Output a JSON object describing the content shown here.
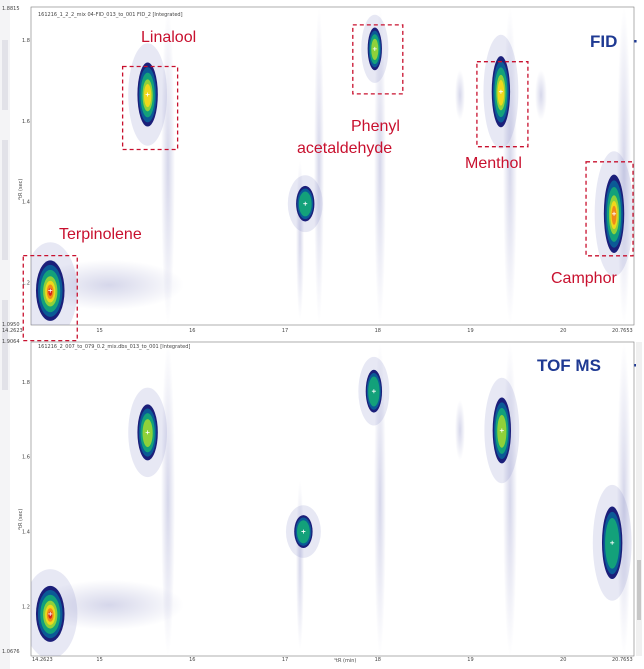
{
  "chart_data": [
    {
      "type": "heatmap",
      "panel": "fid",
      "detector_label": "FID",
      "file_title": "161216_1_2_2_mix 04-FID_013_to_001 FID_2 [Integrated]",
      "axis_top_left": "1.8815",
      "axis_bottom_left": "1.0950",
      "axis_bottom_left_x": "14.2623",
      "axis_bottom_right_x": "20.7653",
      "xticks": [
        "15",
        "16",
        "17",
        "18",
        "19",
        "20"
      ],
      "yticks": [
        "1.8",
        "1.6",
        "1.4",
        "1.2"
      ],
      "ylabel": "²tR (sec)",
      "xlim": [
        14.2623,
        20.7653
      ],
      "ylim": [
        1.095,
        1.8815
      ],
      "peaks": [
        {
          "name": "Terpinolene",
          "x": 14.47,
          "y": 1.18,
          "intensity": 1.0,
          "sigx": 0.07,
          "sigy": 0.034
        },
        {
          "name": "Linalool",
          "x": 15.52,
          "y": 1.665,
          "intensity": 0.8,
          "sigx": 0.05,
          "sigy": 0.036
        },
        {
          "name": "Phenyl acetaldehyde",
          "x": 17.97,
          "y": 1.778,
          "intensity": 0.58,
          "sigx": 0.035,
          "sigy": 0.024
        },
        {
          "name": "Menthol",
          "x": 19.33,
          "y": 1.672,
          "intensity": 0.72,
          "sigx": 0.045,
          "sigy": 0.04
        },
        {
          "name": "Camphor",
          "x": 20.55,
          "y": 1.37,
          "intensity": 0.9,
          "sigx": 0.05,
          "sigy": 0.044
        },
        {
          "name": "",
          "x": 17.22,
          "y": 1.395,
          "intensity": 0.5,
          "sigx": 0.045,
          "sigy": 0.02
        }
      ],
      "annotations": [
        "Linalool",
        "Phenyl",
        "acetaldehyde",
        "Menthol",
        "Terpinolene",
        "Camphor"
      ]
    },
    {
      "type": "heatmap",
      "panel": "tof",
      "detector_label": "TOF MS",
      "file_title": "161216_2_007_to_079_0.2_mix.dbs_013_to_001 [Integrated]",
      "axis_top_left": "1.9064",
      "axis_bottom_left": "1.0676",
      "axis_bottom_left_x": "14.2623",
      "axis_bottom_right_x": "20.7653",
      "xticks": [
        "15",
        "16",
        "17",
        "18",
        "19",
        "20"
      ],
      "yticks": [
        "1.8",
        "1.6",
        "1.4",
        "1.2"
      ],
      "xlabel": "¹tR (min)",
      "ylabel": "²tR (sec)",
      "xlim": [
        14.2623,
        20.7653
      ],
      "ylim": [
        1.0676,
        1.9064
      ],
      "peaks": [
        {
          "name": "Terpinolene",
          "x": 14.47,
          "y": 1.18,
          "intensity": 1.0,
          "sigx": 0.07,
          "sigy": 0.034
        },
        {
          "name": "Linalool",
          "x": 15.52,
          "y": 1.665,
          "intensity": 0.55,
          "sigx": 0.05,
          "sigy": 0.034
        },
        {
          "name": "Phenyl acetaldehyde",
          "x": 17.96,
          "y": 1.775,
          "intensity": 0.5,
          "sigx": 0.04,
          "sigy": 0.026
        },
        {
          "name": "Menthol",
          "x": 19.34,
          "y": 1.67,
          "intensity": 0.55,
          "sigx": 0.045,
          "sigy": 0.04
        },
        {
          "name": "Camphor",
          "x": 20.53,
          "y": 1.37,
          "intensity": 0.52,
          "sigx": 0.05,
          "sigy": 0.044
        },
        {
          "name": "",
          "x": 17.2,
          "y": 1.4,
          "intensity": 0.45,
          "sigx": 0.045,
          "sigy": 0.02
        }
      ]
    }
  ]
}
